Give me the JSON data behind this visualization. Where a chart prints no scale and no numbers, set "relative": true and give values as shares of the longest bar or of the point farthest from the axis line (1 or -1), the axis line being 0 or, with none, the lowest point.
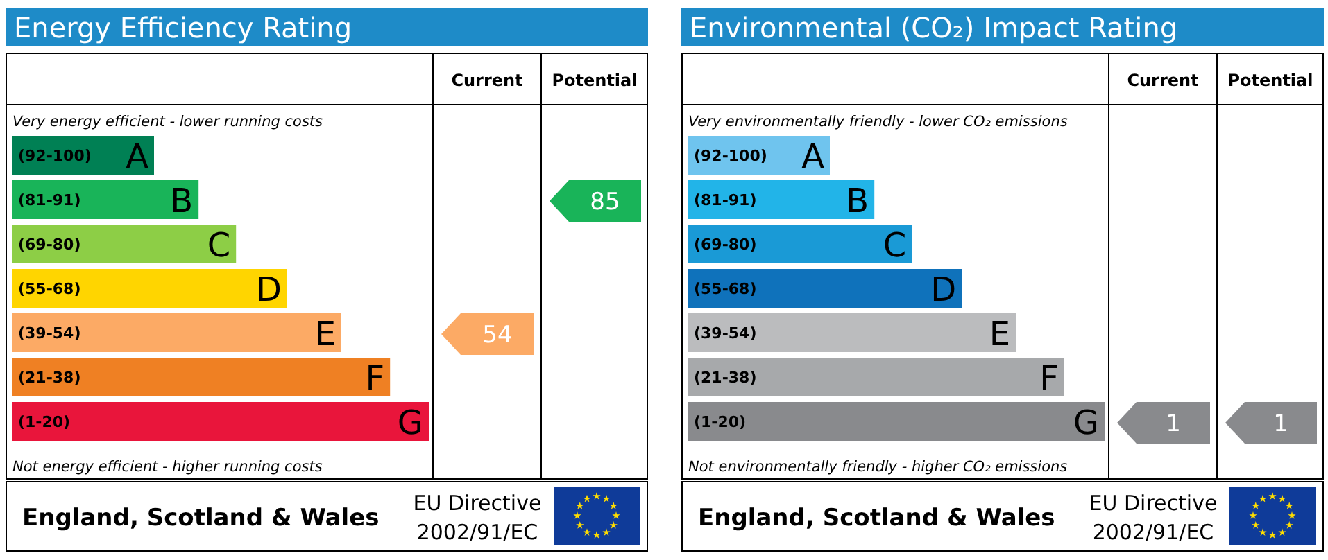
{
  "chart_data": [
    {
      "type": "bar",
      "orientation": "horizontal",
      "relative": true,
      "title": "Energy Efficiency Rating",
      "categories": [
        "(92-100)",
        "(81-91)",
        "(69-80)",
        "(55-68)",
        "(39-54)",
        "(21-38)",
        "(1-20)"
      ],
      "values": [
        0.34,
        0.447,
        0.537,
        0.66,
        0.79,
        0.907,
        1
      ],
      "colors": [
        "#008054",
        "#19b459",
        "#8dce46",
        "#ffd500",
        "#fcaa65",
        "#ef8023",
        "#e9153b"
      ],
      "annotations": [
        "Very energy efficient - lower running costs",
        "Not energy efficient - higher running costs",
        "Current",
        "Potential",
        "54",
        "85",
        "England, Scotland & Wales",
        "EU Directive",
        "2002/91/EC",
        "A",
        "B",
        "C",
        "D",
        "E",
        "F",
        "G"
      ]
    },
    {
      "type": "bar",
      "orientation": "horizontal",
      "relative": true,
      "title": "Environmental (CO₂) Impact Rating",
      "categories": [
        "(92-100)",
        "(81-91)",
        "(69-80)",
        "(55-68)",
        "(39-54)",
        "(21-38)",
        "(1-20)"
      ],
      "values": [
        0.34,
        0.447,
        0.537,
        0.657,
        0.787,
        0.903,
        1
      ],
      "colors": [
        "#6fc4ee",
        "#22b4e8",
        "#1a9ad6",
        "#0f72bb",
        "#bbbcbe",
        "#a7a9ab",
        "#898a8d"
      ],
      "annotations": [
        "Very environmentally friendly - lower CO₂ emissions",
        "Not environmentally friendly - higher CO₂ emissions",
        "Current",
        "Potential",
        "1",
        "1",
        "England, Scotland & Wales",
        "EU Directive",
        "2002/91/EC",
        "A",
        "B",
        "C",
        "D",
        "E",
        "F",
        "G"
      ]
    }
  ]
}
